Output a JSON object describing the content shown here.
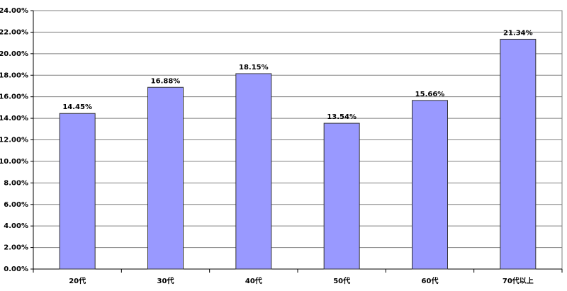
{
  "chart_data": {
    "type": "bar",
    "categories": [
      "20代",
      "30代",
      "40代",
      "50代",
      "60代",
      "70代以上"
    ],
    "values": [
      14.45,
      16.88,
      18.15,
      13.54,
      15.66,
      21.34
    ],
    "value_labels": [
      "14.45%",
      "16.88%",
      "18.15%",
      "13.54%",
      "15.66%",
      "21.34%"
    ],
    "color": "#9999ff",
    "ylim": [
      0,
      24
    ],
    "yticks": [
      {
        "value": 0,
        "label": "0.00%"
      },
      {
        "value": 2,
        "label": "2.00%"
      },
      {
        "value": 4,
        "label": "4.00%"
      },
      {
        "value": 6,
        "label": "6.00%"
      },
      {
        "value": 8,
        "label": "8.00%"
      },
      {
        "value": 10,
        "label": "10.00%"
      },
      {
        "value": 12,
        "label": "12.00%"
      },
      {
        "value": 14,
        "label": "14.00%"
      },
      {
        "value": 16,
        "label": "16.00%"
      },
      {
        "value": 18,
        "label": "18.00%"
      },
      {
        "value": 20,
        "label": "20.00%"
      },
      {
        "value": 22,
        "label": "22.00%"
      },
      {
        "value": 24,
        "label": "24.00%"
      }
    ],
    "grid": true
  }
}
